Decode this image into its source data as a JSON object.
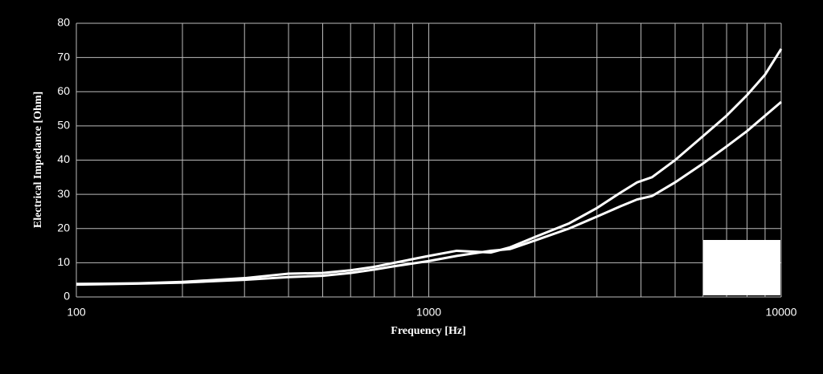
{
  "chart_data": {
    "type": "line",
    "x_label": "Frequency [Hz]",
    "y_label": "Electrical Impedance [Ohm]",
    "x": [
      100,
      150,
      200,
      300,
      400,
      500,
      600,
      700,
      800,
      1000,
      1200,
      1500,
      1700,
      2000,
      2500,
      3000,
      3500,
      3900,
      4300,
      5000,
      6000,
      7000,
      8000,
      9000,
      10000
    ],
    "series": [
      {
        "color": "#ffffff",
        "values": [
          3.8,
          4.0,
          4.4,
          5.5,
          6.8,
          7.0,
          7.8,
          8.8,
          10,
          12,
          13.5,
          13,
          14.5,
          17.5,
          21.5,
          26,
          30.5,
          33.5,
          35,
          40,
          47,
          53,
          59,
          65,
          72.5
        ]
      },
      {
        "color": "#ffffff",
        "values": [
          3.6,
          3.9,
          4.2,
          5.0,
          5.8,
          6.2,
          7,
          8,
          9,
          10.5,
          12,
          13.5,
          14,
          16.5,
          20,
          23.5,
          26.5,
          28.5,
          29.5,
          33.5,
          39,
          44,
          48.5,
          53,
          57
        ]
      }
    ],
    "xlim": [
      100,
      10000
    ],
    "xticks": [
      100,
      1000,
      10000
    ],
    "xscale": "log",
    "ylim": [
      0,
      80
    ],
    "yticks": [
      0,
      10,
      20,
      30,
      40,
      50,
      60,
      70,
      80
    ],
    "grid": true
  }
}
